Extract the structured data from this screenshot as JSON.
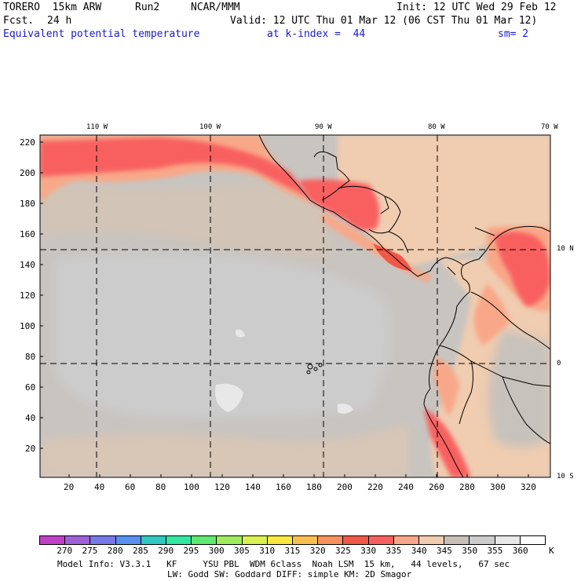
{
  "header": {
    "model": "TORERO  15km ARW",
    "run": "Run2",
    "center": "NCAR/MMM",
    "init": "Init: 12 UTC Wed 29 Feb 12",
    "fcst_label": "Fcst.",
    "fcst_hours": "24 h",
    "valid": "Valid: 12 UTC Thu 01 Mar 12 (06 CST Thu 01 Mar 12)",
    "field": "Equivalent potential temperature",
    "level": "at k-index =  44",
    "smoothing": "sm= 2"
  },
  "lon_labels": [
    "110 W",
    "100 W",
    "90 W",
    "80 W",
    "70 W"
  ],
  "lat_labels": [
    "10 N",
    "0",
    "10 S"
  ],
  "y_ticks": [
    "220",
    "200",
    "180",
    "160",
    "140",
    "120",
    "100",
    "80",
    "60",
    "40",
    "20"
  ],
  "x_ticks": [
    "20",
    "40",
    "60",
    "80",
    "100",
    "120",
    "140",
    "160",
    "180",
    "200",
    "220",
    "240",
    "260",
    "280",
    "300",
    "320"
  ],
  "colorbar": {
    "labels": [
      "270",
      "275",
      "280",
      "285",
      "290",
      "295",
      "300",
      "305",
      "310",
      "315",
      "320",
      "325",
      "330",
      "335",
      "340",
      "345",
      "350",
      "355",
      "360"
    ],
    "unit": "K",
    "colors": [
      "#c040c8",
      "#a060d8",
      "#7878e8",
      "#5890f0",
      "#30c8c0",
      "#30e8a0",
      "#60e870",
      "#a0ec60",
      "#d8f050",
      "#f8e840",
      "#f8c050",
      "#f89060",
      "#f05848",
      "#f86060",
      "#f8a888",
      "#f0ccb0",
      "#c8c0b8",
      "#cccccc",
      "#e8e8e8",
      "#ffffff"
    ]
  },
  "footer": {
    "line1": "Model Info: V3.3.1   KF     YSU PBL  WDM 6class  Noah LSM  15 km,   44 levels,   67 sec",
    "line2": "LW: Godd SW: Goddard DIFF: simple KM: 2D Smagor"
  }
}
